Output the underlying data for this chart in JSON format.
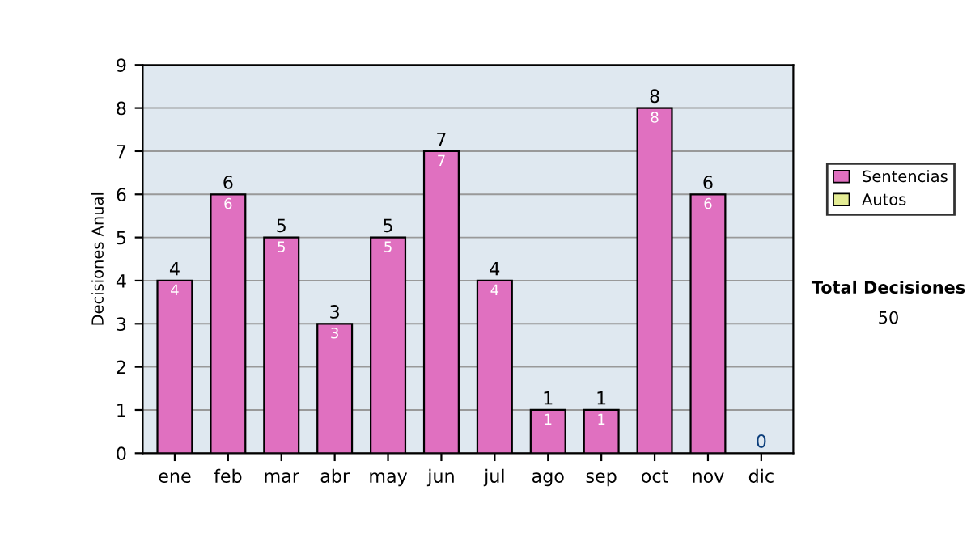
{
  "chart_data": {
    "type": "bar",
    "stacked": true,
    "ylabel": "Decisiones Anual",
    "categories": [
      "ene",
      "feb",
      "mar",
      "abr",
      "may",
      "jun",
      "jul",
      "ago",
      "sep",
      "oct",
      "nov",
      "dic"
    ],
    "series": [
      {
        "name": "Sentencias",
        "color": "#e070c0",
        "values": [
          4,
          6,
          5,
          3,
          5,
          7,
          4,
          1,
          1,
          8,
          6,
          0
        ],
        "value_labels": [
          "4",
          "6",
          "5",
          "3",
          "5",
          "7",
          "4",
          "1",
          "1",
          "8",
          "6",
          null
        ]
      },
      {
        "name": "Autos",
        "color": "#e4ec94",
        "values": [
          0,
          0,
          0,
          0,
          0,
          0,
          0,
          0,
          0,
          0,
          0,
          0
        ]
      }
    ],
    "totals": [
      "4",
      "6",
      "5",
      "3",
      "5",
      "7",
      "4",
      "1",
      "1",
      "8",
      "6",
      "0"
    ],
    "ylim": [
      0,
      9
    ],
    "yticks": [
      0,
      1,
      2,
      3,
      4,
      5,
      6,
      7,
      8,
      9
    ],
    "grid": "y",
    "legend": "right",
    "annotations": [
      "Total Decisiones",
      "50"
    ]
  }
}
